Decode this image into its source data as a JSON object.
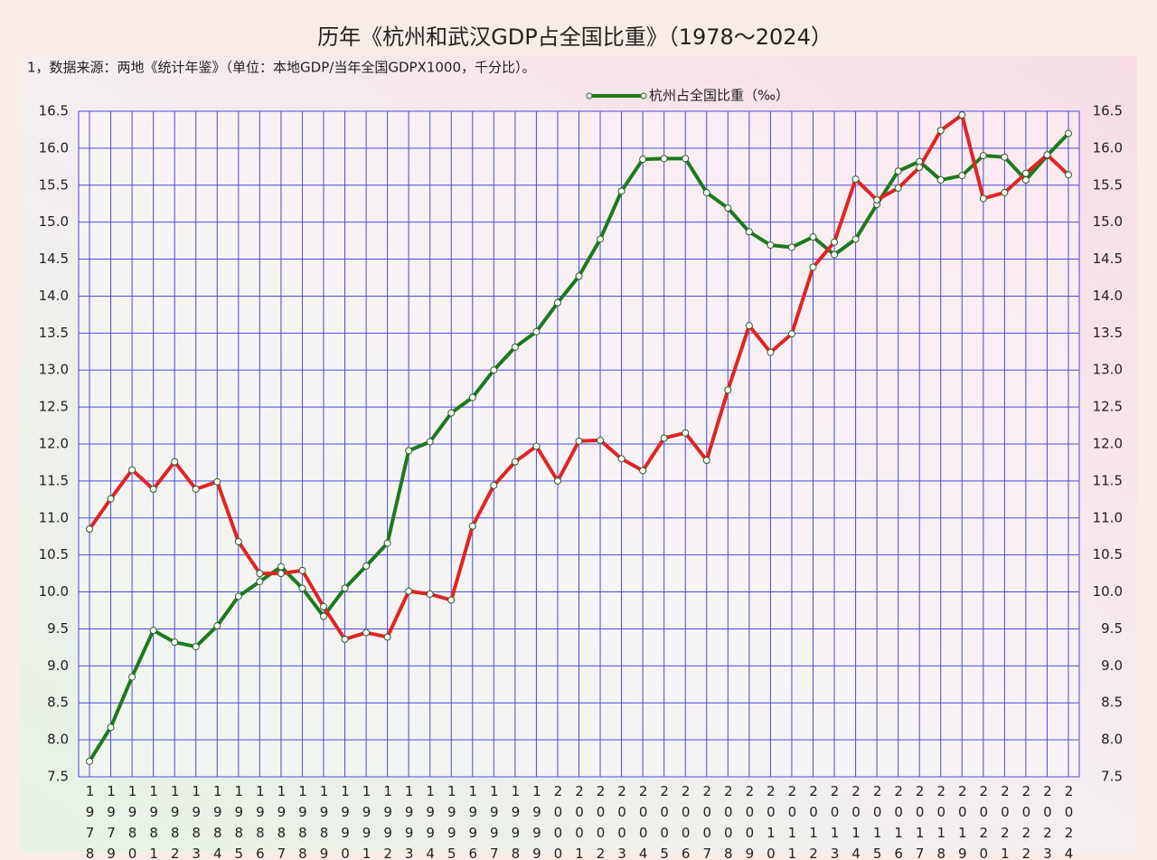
{
  "chart_data": {
    "type": "line",
    "title": "历年《杭州和武汉GDP占全国比重》（1978～2024）",
    "subtitle": "1，数据来源：两地《统计年鉴》（单位：本地GDP/当年全国GDPX1000，千分比）。",
    "categories": [
      "1978",
      "1979",
      "1980",
      "1981",
      "1982",
      "1983",
      "1984",
      "1985",
      "1986",
      "1987",
      "1988",
      "1989",
      "1990",
      "1991",
      "1992",
      "1993",
      "1994",
      "1995",
      "1996",
      "1997",
      "1998",
      "1999",
      "2000",
      "2001",
      "2002",
      "2003",
      "2004",
      "2005",
      "2006",
      "2007",
      "2008",
      "2009",
      "2010",
      "2011",
      "2012",
      "2013",
      "2014",
      "2015",
      "2016",
      "2017",
      "2018",
      "2019",
      "2020",
      "2021",
      "2022",
      "2023",
      "2024"
    ],
    "series": [
      {
        "name": "杭州占全国比重（‰）",
        "color": "#1d7a1d",
        "values": [
          7.71,
          8.17,
          8.85,
          9.48,
          9.32,
          9.26,
          9.54,
          9.94,
          10.14,
          10.34,
          10.05,
          9.67,
          10.05,
          10.35,
          10.66,
          11.91,
          12.03,
          12.42,
          12.63,
          13.0,
          13.31,
          13.52,
          13.91,
          14.27,
          14.77,
          15.42,
          15.85,
          15.86,
          15.86,
          15.4,
          15.19,
          14.87,
          14.69,
          14.66,
          14.8,
          14.56,
          14.77,
          15.24,
          15.69,
          15.82,
          15.57,
          15.63,
          15.9,
          15.88,
          15.57,
          15.9,
          16.2
        ]
      },
      {
        "color": "#e02424",
        "values": [
          10.85,
          11.26,
          11.65,
          11.39,
          11.76,
          11.39,
          11.49,
          10.68,
          10.25,
          10.25,
          10.29,
          9.8,
          9.36,
          9.45,
          9.39,
          10.01,
          9.97,
          9.89,
          10.89,
          11.44,
          11.76,
          11.97,
          11.5,
          12.04,
          12.05,
          11.8,
          11.64,
          12.08,
          12.15,
          11.78,
          12.73,
          13.6,
          13.24,
          13.49,
          14.39,
          14.73,
          15.58,
          15.3,
          15.46,
          15.74,
          16.24,
          16.45,
          15.32,
          15.4,
          15.66,
          15.91,
          15.64
        ]
      }
    ],
    "ylim": [
      7.5,
      16.5
    ],
    "yticks": [
      {
        "value": 7.5,
        "label": "7.5"
      },
      {
        "value": 8,
        "label": "8.0"
      },
      {
        "value": 8.5,
        "label": "8.5"
      },
      {
        "value": 9,
        "label": "9.0"
      },
      {
        "value": 9.5,
        "label": "9.5"
      },
      {
        "value": 10,
        "label": "10.0"
      },
      {
        "value": 10.5,
        "label": "10.5"
      },
      {
        "value": 11,
        "label": "11.0"
      },
      {
        "value": 11.5,
        "label": "11.5"
      },
      {
        "value": 12,
        "label": "12.0"
      },
      {
        "value": 12.5,
        "label": "12.5"
      },
      {
        "value": 13,
        "label": "13.0"
      },
      {
        "value": 13.5,
        "label": "13.5"
      },
      {
        "value": 14,
        "label": "14.0"
      },
      {
        "value": 14.5,
        "label": "14.5"
      },
      {
        "value": 15,
        "label": "15.0"
      },
      {
        "value": 15.5,
        "label": "15.5"
      },
      {
        "value": 16,
        "label": "16.0"
      },
      {
        "value": 16.5,
        "label": "16.5"
      }
    ],
    "grid": true
  }
}
